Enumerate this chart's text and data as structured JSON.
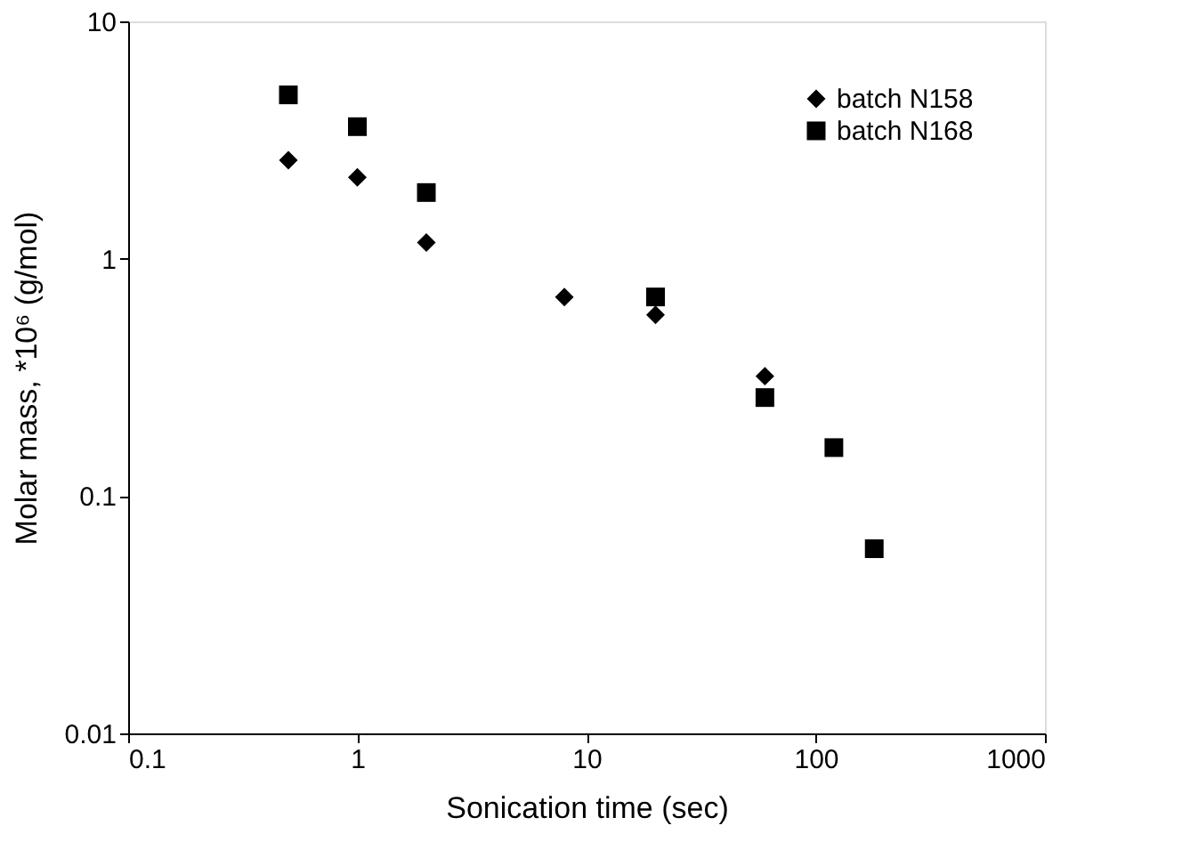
{
  "chart_data": {
    "type": "scatter",
    "xlabel": "Sonication time (sec)",
    "ylabel": "Molar mass, *10⁶ (g/mol)",
    "log": "xy",
    "xlim": [
      0.1,
      1000
    ],
    "xticks": [
      0.1,
      1,
      10,
      100,
      1000
    ],
    "ylim": [
      0.01,
      10
    ],
    "yticks": [
      0.01,
      0.1,
      1,
      10
    ],
    "grid": false,
    "legend": "top right",
    "series": [
      {
        "name": "batch  N158",
        "color": "#000000",
        "marker": "diamond",
        "x": [
          0.5,
          1,
          2,
          8,
          20,
          60
        ],
        "values": [
          2.6,
          2.2,
          1.17,
          0.69,
          0.58,
          0.32
        ]
      },
      {
        "name": "batch  N168",
        "color": "#000000",
        "marker": "square",
        "x": [
          0.5,
          1,
          2,
          20,
          60,
          120,
          180
        ],
        "values": [
          4.9,
          3.6,
          1.9,
          0.69,
          0.26,
          0.16,
          0.06
        ]
      }
    ]
  }
}
